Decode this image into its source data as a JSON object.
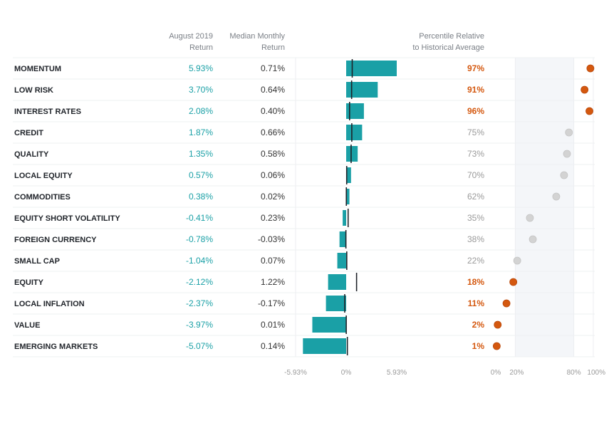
{
  "chart_data": {
    "type": "bar",
    "title": "",
    "headers": {
      "aug_line1": "August 2019",
      "aug_line2": "Return",
      "median_line1": "Median Monthly",
      "median_line2": "Return",
      "pct_line1": "Percentile Relative",
      "pct_line2": "to Historical Average"
    },
    "rows": [
      {
        "factor": "MOMENTUM",
        "aug": 5.93,
        "aug_label": "5.93%",
        "median": 0.71,
        "median_label": "0.71%",
        "pct": 97,
        "pct_label": "97%"
      },
      {
        "factor": "LOW RISK",
        "aug": 3.7,
        "aug_label": "3.70%",
        "median": 0.64,
        "median_label": "0.64%",
        "pct": 91,
        "pct_label": "91%"
      },
      {
        "factor": "INTEREST RATES",
        "aug": 2.08,
        "aug_label": "2.08%",
        "median": 0.4,
        "median_label": "0.40%",
        "pct": 96,
        "pct_label": "96%"
      },
      {
        "factor": "CREDIT",
        "aug": 1.87,
        "aug_label": "1.87%",
        "median": 0.66,
        "median_label": "0.66%",
        "pct": 75,
        "pct_label": "75%"
      },
      {
        "factor": "QUALITY",
        "aug": 1.35,
        "aug_label": "1.35%",
        "median": 0.58,
        "median_label": "0.58%",
        "pct": 73,
        "pct_label": "73%"
      },
      {
        "factor": "LOCAL EQUITY",
        "aug": 0.57,
        "aug_label": "0.57%",
        "median": 0.06,
        "median_label": "0.06%",
        "pct": 70,
        "pct_label": "70%"
      },
      {
        "factor": "COMMODITIES",
        "aug": 0.38,
        "aug_label": "0.38%",
        "median": 0.02,
        "median_label": "0.02%",
        "pct": 62,
        "pct_label": "62%"
      },
      {
        "factor": "EQUITY SHORT VOLATILITY",
        "aug": -0.41,
        "aug_label": "-0.41%",
        "median": 0.23,
        "median_label": "0.23%",
        "pct": 35,
        "pct_label": "35%"
      },
      {
        "factor": "FOREIGN CURRENCY",
        "aug": -0.78,
        "aug_label": "-0.78%",
        "median": -0.03,
        "median_label": "-0.03%",
        "pct": 38,
        "pct_label": "38%"
      },
      {
        "factor": "SMALL CAP",
        "aug": -1.04,
        "aug_label": "-1.04%",
        "median": 0.07,
        "median_label": "0.07%",
        "pct": 22,
        "pct_label": "22%"
      },
      {
        "factor": "EQUITY",
        "aug": -2.12,
        "aug_label": "-2.12%",
        "median": 1.22,
        "median_label": "1.22%",
        "pct": 18,
        "pct_label": "18%"
      },
      {
        "factor": "LOCAL INFLATION",
        "aug": -2.37,
        "aug_label": "-2.37%",
        "median": -0.17,
        "median_label": "-0.17%",
        "pct": 11,
        "pct_label": "11%"
      },
      {
        "factor": "VALUE",
        "aug": -3.97,
        "aug_label": "-3.97%",
        "median": 0.01,
        "median_label": "0.01%",
        "pct": 2,
        "pct_label": "2%"
      },
      {
        "factor": "EMERGING MARKETS",
        "aug": -5.07,
        "aug_label": "-5.07%",
        "median": 0.14,
        "median_label": "0.14%",
        "pct": 1,
        "pct_label": "1%"
      }
    ],
    "bar_axis": {
      "range": [
        -5.93,
        5.93
      ],
      "ticks": [
        -5.93,
        0,
        5.93
      ],
      "tick_labels": [
        "-5.93%",
        "0%",
        "5.93%"
      ]
    },
    "pct_axis": {
      "range": [
        0,
        100
      ],
      "ticks": [
        0,
        20,
        80,
        100
      ],
      "tick_labels": [
        "0%",
        "20%",
        "80%",
        "100%"
      ],
      "shaded_band": [
        20,
        80
      ],
      "highlight_rule": "outside 20–80 band"
    },
    "colors": {
      "bar": "#1aa0a6",
      "median_marker": "#1f2329",
      "dot_highlight": "#d4580f",
      "dot_normal": "#d3d3d3",
      "aug_text": "#1aa0a6",
      "band": "#f4f6f9"
    }
  }
}
